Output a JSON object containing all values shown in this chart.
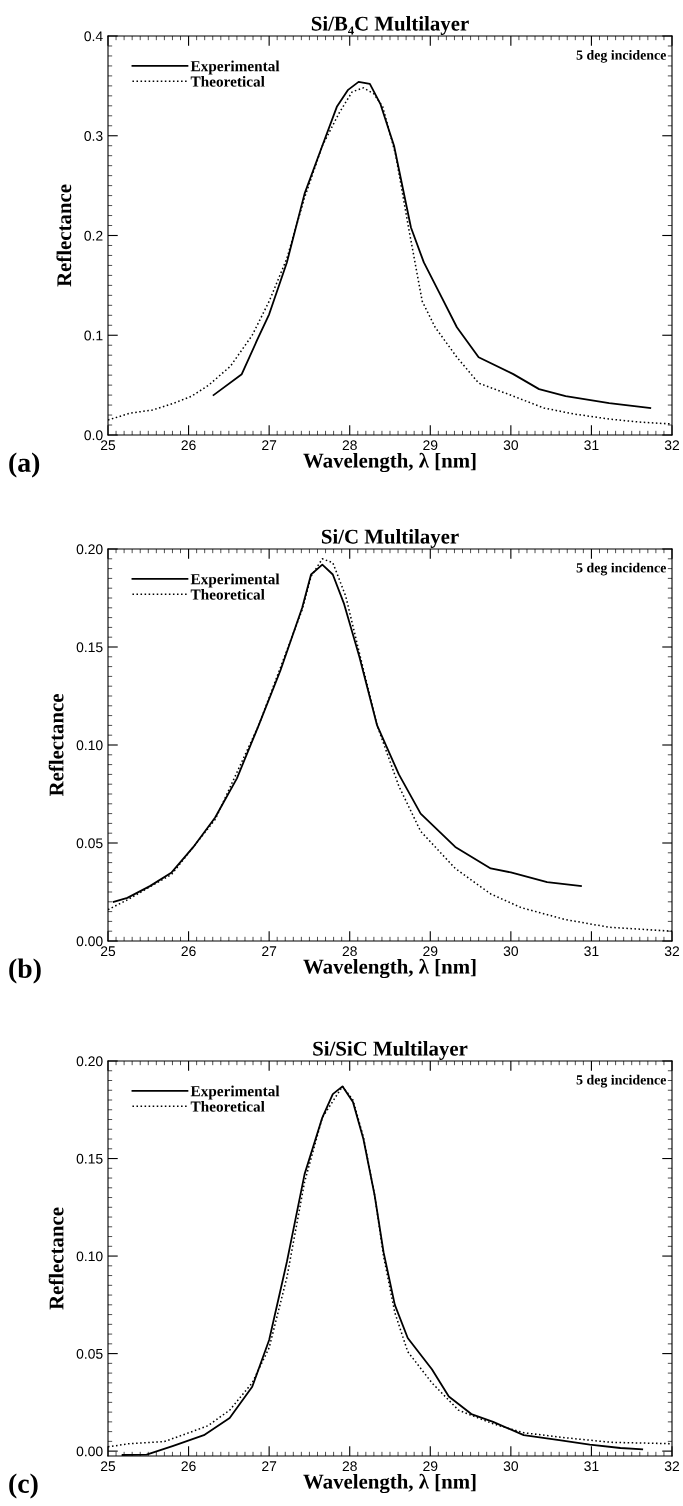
{
  "chart_data": [
    {
      "type": "line",
      "title": "Si/B₄C Multilayer",
      "xlabel": "Wavelength, λ [nm]",
      "ylabel": "Reflectance",
      "annotations": [
        "5 deg incidence",
        "(a)"
      ],
      "xlim": [
        25,
        32
      ],
      "xticks": [
        25,
        26,
        27,
        28,
        29,
        30,
        31,
        32
      ],
      "ylim": [
        0,
        0.4
      ],
      "yticks": [
        {
          "value": 0,
          "label": "0.0"
        },
        0.1,
        0.2,
        0.3,
        0.4
      ],
      "legend": "top left",
      "grid": false,
      "series": [
        {
          "name": "Experimental",
          "color": "#000000",
          "line_style": "solid",
          "x": [
            26.31,
            26.66,
            26.85,
            27.0,
            27.22,
            27.44,
            27.66,
            27.84,
            27.98,
            28.11,
            28.25,
            28.38,
            28.55,
            28.76,
            28.92,
            29.11,
            29.33,
            29.6,
            30.03,
            30.35,
            30.68,
            31.22,
            31.73
          ],
          "values": [
            0.04,
            0.061,
            0.095,
            0.121,
            0.173,
            0.242,
            0.29,
            0.329,
            0.346,
            0.354,
            0.352,
            0.332,
            0.29,
            0.208,
            0.173,
            0.143,
            0.108,
            0.078,
            0.061,
            0.046,
            0.039,
            0.032,
            0.027
          ]
        },
        {
          "name": "Theoretical",
          "color": "#000000",
          "line_style": "dotted",
          "x": [
            25.0,
            25.28,
            25.55,
            25.82,
            26.04,
            26.25,
            26.52,
            26.79,
            27.0,
            27.22,
            27.44,
            27.66,
            27.87,
            28.03,
            28.17,
            28.3,
            28.41,
            28.57,
            28.73,
            28.9,
            29.06,
            29.33,
            29.6,
            30.03,
            30.41,
            30.79,
            31.22,
            31.59,
            32.0
          ],
          "values": [
            0.015,
            0.022,
            0.025,
            0.032,
            0.039,
            0.05,
            0.069,
            0.1,
            0.134,
            0.177,
            0.238,
            0.29,
            0.323,
            0.344,
            0.348,
            0.342,
            0.329,
            0.281,
            0.208,
            0.134,
            0.108,
            0.078,
            0.052,
            0.039,
            0.027,
            0.021,
            0.016,
            0.013,
            0.011
          ]
        }
      ]
    },
    {
      "type": "line",
      "title": "Si/C Multilayer",
      "xlabel": "Wavelength, λ [nm]",
      "ylabel": "Reflectance",
      "annotations": [
        "5 deg incidence",
        "(b)"
      ],
      "xlim": [
        25,
        32
      ],
      "xticks": [
        25,
        26,
        27,
        28,
        29,
        30,
        31,
        32
      ],
      "ylim": [
        0,
        0.2
      ],
      "yticks": [
        {
          "value": 0,
          "label": "0.00"
        },
        0.05,
        {
          "value": 0.1,
          "label": "0.10"
        },
        0.15,
        {
          "value": 0.2,
          "label": "0.20"
        }
      ],
      "legend": "top left",
      "grid": false,
      "series": [
        {
          "name": "Experimental",
          "color": "#000000",
          "line_style": "solid",
          "x": [
            25.07,
            25.24,
            25.52,
            25.79,
            26.06,
            26.33,
            26.6,
            26.87,
            27.14,
            27.41,
            27.52,
            27.66,
            27.79,
            27.93,
            28.12,
            28.34,
            28.61,
            28.88,
            29.31,
            29.75,
            30.0,
            30.45,
            30.87
          ],
          "values": [
            0.02,
            0.022,
            0.028,
            0.035,
            0.048,
            0.063,
            0.083,
            0.11,
            0.138,
            0.17,
            0.187,
            0.192,
            0.187,
            0.172,
            0.145,
            0.11,
            0.085,
            0.065,
            0.048,
            0.037,
            0.035,
            0.03,
            0.028
          ]
        },
        {
          "name": "Theoretical",
          "color": "#000000",
          "line_style": "dotted",
          "x": [
            25.0,
            25.24,
            25.79,
            26.33,
            26.87,
            27.41,
            27.52,
            27.66,
            27.79,
            27.95,
            28.12,
            28.34,
            28.61,
            28.88,
            29.31,
            29.75,
            30.13,
            30.67,
            31.22,
            32.0
          ],
          "values": [
            0.016,
            0.021,
            0.034,
            0.062,
            0.11,
            0.169,
            0.186,
            0.195,
            0.193,
            0.176,
            0.147,
            0.11,
            0.079,
            0.056,
            0.037,
            0.024,
            0.017,
            0.011,
            0.007,
            0.005
          ]
        }
      ]
    },
    {
      "type": "line",
      "title": "Si/SiC Multilayer",
      "xlabel": "Wavelength, λ [nm]",
      "ylabel": "Reflectance",
      "annotations": [
        "5 deg incidence",
        "(c)"
      ],
      "xlim": [
        25,
        32
      ],
      "xticks": [
        25,
        26,
        27,
        28,
        29,
        30,
        31,
        32
      ],
      "ylim": [
        -0.0025,
        0.2
      ],
      "yticks": [
        {
          "value": 0,
          "label": "0.00"
        },
        0.05,
        {
          "value": 0.1,
          "label": "0.10"
        },
        0.15,
        {
          "value": 0.2,
          "label": "0.20"
        }
      ],
      "legend": "top left",
      "grid": false,
      "series": [
        {
          "name": "Experimental",
          "color": "#000000",
          "line_style": "solid",
          "x": [
            25.18,
            25.48,
            25.81,
            26.19,
            26.51,
            26.79,
            27.0,
            27.22,
            27.44,
            27.66,
            27.79,
            27.91,
            28.04,
            28.17,
            28.31,
            28.42,
            28.56,
            28.72,
            29.02,
            29.23,
            29.51,
            29.78,
            30.16,
            30.6,
            30.98,
            31.36,
            31.63
          ],
          "values": [
            -0.002,
            -0.0018,
            0.0027,
            0.0082,
            0.017,
            0.033,
            0.057,
            0.097,
            0.142,
            0.171,
            0.183,
            0.187,
            0.179,
            0.16,
            0.131,
            0.102,
            0.075,
            0.058,
            0.042,
            0.028,
            0.019,
            0.015,
            0.0082,
            0.0056,
            0.0033,
            0.0016,
            0.0009
          ]
        },
        {
          "name": "Theoretical",
          "color": "#000000",
          "line_style": "dotted",
          "x": [
            25.0,
            25.26,
            25.7,
            25.97,
            26.24,
            26.51,
            26.79,
            27.0,
            27.22,
            27.44,
            27.66,
            27.91,
            28.04,
            28.17,
            28.31,
            28.42,
            28.56,
            28.72,
            29.02,
            29.35,
            29.78,
            30.16,
            30.71,
            31.25,
            32.0
          ],
          "values": [
            0.0022,
            0.0038,
            0.0049,
            0.0089,
            0.013,
            0.021,
            0.035,
            0.053,
            0.089,
            0.138,
            0.171,
            0.187,
            0.18,
            0.161,
            0.131,
            0.1,
            0.071,
            0.051,
            0.035,
            0.021,
            0.014,
            0.0094,
            0.0067,
            0.0045,
            0.0038
          ]
        }
      ]
    }
  ]
}
